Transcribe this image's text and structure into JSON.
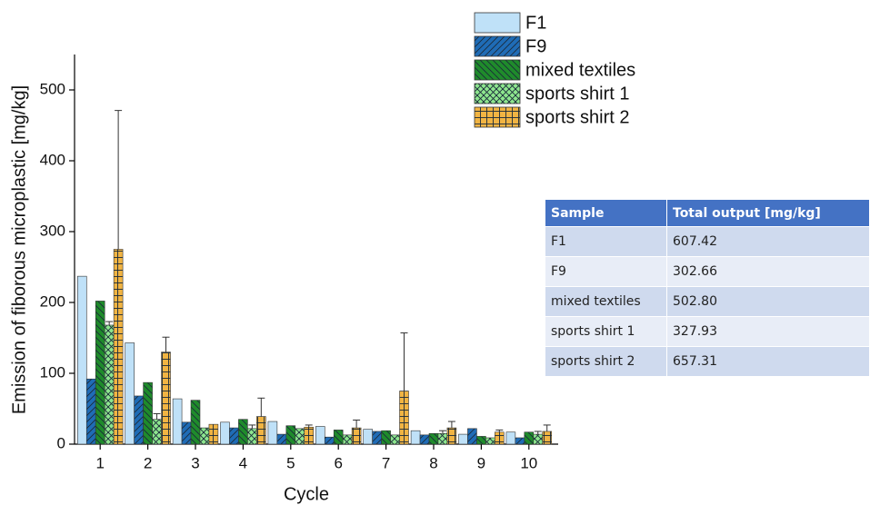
{
  "chart_data": {
    "type": "bar",
    "y_label": "Emission of fiborous microplastic [mg/kg]",
    "x_label": "Cycle",
    "categories": [
      "1",
      "2",
      "3",
      "4",
      "5",
      "6",
      "7",
      "8",
      "9",
      "10"
    ],
    "ylim": [
      0,
      550
    ],
    "yticks": [
      0,
      100,
      200,
      300,
      400,
      500
    ],
    "series": [
      {
        "name": "F1",
        "color": "#bfe1f8",
        "hatch": "none",
        "values": [
          237,
          143,
          64,
          31,
          32,
          25,
          21,
          19,
          14,
          17
        ],
        "errors": [
          null,
          null,
          null,
          null,
          null,
          null,
          null,
          null,
          null,
          null
        ]
      },
      {
        "name": "F9",
        "color": "#1f6cb6",
        "hatch": "/",
        "values": [
          92,
          68,
          31,
          23,
          14,
          10,
          18,
          13,
          22,
          9
        ],
        "errors": [
          null,
          null,
          null,
          null,
          null,
          null,
          null,
          null,
          null,
          null
        ]
      },
      {
        "name": "mixed textiles",
        "color": "#1f8b2b",
        "hatch": "\\",
        "values": [
          202,
          87,
          62,
          35,
          26,
          20,
          19,
          15,
          11,
          17
        ],
        "errors": [
          null,
          null,
          null,
          null,
          null,
          null,
          null,
          null,
          null,
          null
        ]
      },
      {
        "name": "sports shirt 1",
        "color": "#8ee68e",
        "hatch": "x",
        "values": [
          168,
          35,
          23,
          22,
          22,
          13,
          13,
          15,
          9,
          14
        ],
        "errors": [
          5,
          8,
          null,
          5,
          null,
          null,
          null,
          4,
          null,
          4
        ]
      },
      {
        "name": "sports shirt 2",
        "color": "#f1b443",
        "hatch": "+",
        "values": [
          275,
          130,
          28,
          39,
          24,
          23,
          75,
          23,
          17,
          18
        ],
        "errors": [
          196,
          21,
          null,
          26,
          3,
          11,
          82,
          9,
          3,
          9
        ]
      }
    ]
  },
  "table": {
    "header": [
      "Sample",
      "Total output [mg/kg]"
    ],
    "rows": [
      [
        "F1",
        "607.42"
      ],
      [
        "F9",
        "302.66"
      ],
      [
        "mixed textiles",
        "502.80"
      ],
      [
        "sports shirt 1",
        "327.93"
      ],
      [
        "sports shirt 2",
        "657.31"
      ]
    ]
  }
}
